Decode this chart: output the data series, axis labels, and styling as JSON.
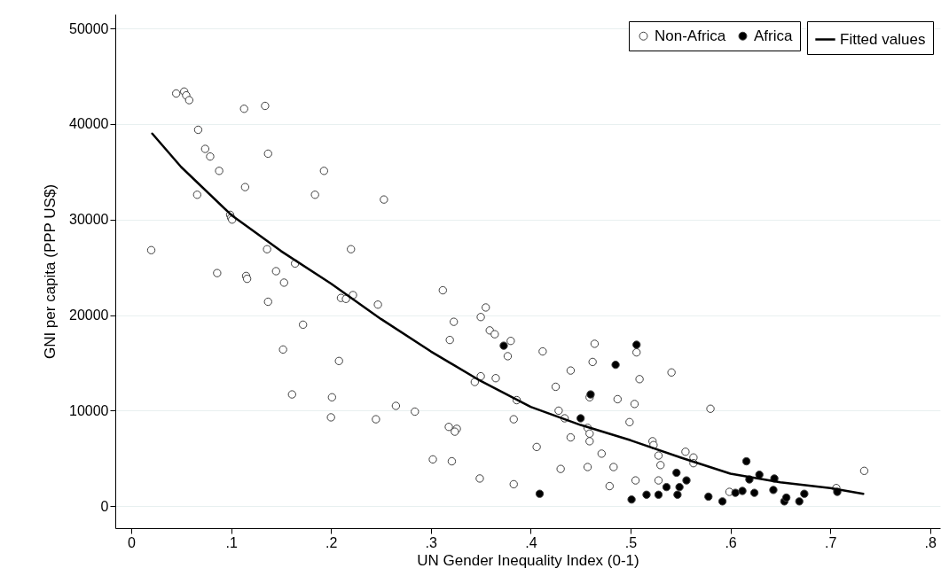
{
  "chart_data": {
    "type": "scatter",
    "xlabel": "UN Gender Inequality Index (0-1)",
    "ylabel": "GNI per capita (PPP US$)",
    "xlim": [
      -0.016,
      0.81
    ],
    "ylim": [
      -2300,
      51500
    ],
    "xticks": [
      {
        "value": 0,
        "label": "0"
      },
      {
        "value": 0.1,
        "label": ".1"
      },
      {
        "value": 0.2,
        "label": ".2"
      },
      {
        "value": 0.3,
        "label": ".3"
      },
      {
        "value": 0.4,
        "label": ".4"
      },
      {
        "value": 0.5,
        "label": ".5"
      },
      {
        "value": 0.6,
        "label": ".6"
      },
      {
        "value": 0.7,
        "label": ".7"
      },
      {
        "value": 0.8,
        "label": ".8"
      }
    ],
    "yticks": [
      0,
      10000,
      20000,
      30000,
      40000,
      50000
    ],
    "grid": "y",
    "legend": "top right",
    "marker": "circle",
    "series": [
      {
        "name": "Non-Africa",
        "color": "#ffffff",
        "x": [
          0.045,
          0.053,
          0.055,
          0.058,
          0.113,
          0.134,
          0.067,
          0.074,
          0.079,
          0.137,
          0.088,
          0.193,
          0.066,
          0.114,
          0.184,
          0.253,
          0.099,
          0.1,
          0.101,
          0.02,
          0.136,
          0.22,
          0.086,
          0.115,
          0.116,
          0.145,
          0.153,
          0.164,
          0.137,
          0.21,
          0.215,
          0.222,
          0.247,
          0.172,
          0.152,
          0.208,
          0.161,
          0.201,
          0.2,
          0.245,
          0.265,
          0.284,
          0.312,
          0.355,
          0.35,
          0.323,
          0.359,
          0.364,
          0.38,
          0.319,
          0.377,
          0.412,
          0.464,
          0.462,
          0.506,
          0.44,
          0.509,
          0.425,
          0.344,
          0.35,
          0.365,
          0.386,
          0.459,
          0.487,
          0.504,
          0.499,
          0.383,
          0.428,
          0.434,
          0.318,
          0.326,
          0.324,
          0.457,
          0.459,
          0.459,
          0.44,
          0.406,
          0.471,
          0.522,
          0.523,
          0.528,
          0.53,
          0.302,
          0.321,
          0.43,
          0.457,
          0.483,
          0.349,
          0.383,
          0.479,
          0.505,
          0.528,
          0.541,
          0.58,
          0.555,
          0.563,
          0.563,
          0.599,
          0.706,
          0.734
        ],
        "values": [
          43200,
          43400,
          43000,
          42500,
          41600,
          41900,
          39400,
          37400,
          36600,
          36900,
          35100,
          35100,
          32600,
          33400,
          32600,
          32100,
          30500,
          30200,
          30000,
          26800,
          26900,
          26900,
          24400,
          24100,
          23800,
          24600,
          23400,
          25400,
          21400,
          21800,
          21700,
          22100,
          21100,
          19000,
          16400,
          15200,
          11700,
          11400,
          9300,
          9100,
          10500,
          9900,
          22600,
          20800,
          19800,
          19300,
          18400,
          18000,
          17300,
          17400,
          15700,
          16200,
          17000,
          15100,
          16100,
          14200,
          13300,
          12500,
          13000,
          13600,
          13400,
          11100,
          11400,
          11200,
          10700,
          8800,
          9100,
          10000,
          9200,
          8300,
          8100,
          7800,
          8200,
          7600,
          6800,
          7200,
          6200,
          5500,
          6800,
          6400,
          5300,
          4300,
          4900,
          4700,
          3900,
          4100,
          4100,
          2900,
          2300,
          2100,
          2700,
          2700,
          14000,
          10200,
          5700,
          5100,
          4500,
          1500,
          1900,
          3700
        ]
      },
      {
        "name": "Africa",
        "color": "#000000",
        "x": [
          0.373,
          0.506,
          0.485,
          0.46,
          0.45,
          0.409,
          0.501,
          0.516,
          0.528,
          0.536,
          0.546,
          0.556,
          0.549,
          0.547,
          0.578,
          0.592,
          0.616,
          0.605,
          0.612,
          0.619,
          0.629,
          0.624,
          0.644,
          0.643,
          0.654,
          0.656,
          0.669,
          0.674,
          0.707
        ],
        "values": [
          16800,
          16900,
          14800,
          11700,
          9200,
          1300,
          700,
          1200,
          1200,
          2000,
          3500,
          2700,
          2000,
          1200,
          1000,
          500,
          4700,
          1400,
          1600,
          2800,
          3300,
          1400,
          2900,
          1700,
          500,
          900,
          500,
          1300,
          1500
        ]
      },
      {
        "name": "Fitted values",
        "type": "line",
        "color": "#000000",
        "marker": "none",
        "line_style": "solid",
        "x": [
          0.021,
          0.05,
          0.1,
          0.15,
          0.2,
          0.25,
          0.3,
          0.35,
          0.4,
          0.45,
          0.5,
          0.55,
          0.6,
          0.65,
          0.7,
          0.733
        ],
        "values": [
          39000,
          35500,
          30500,
          26700,
          23300,
          19600,
          16200,
          13100,
          10400,
          8500,
          6900,
          5100,
          3400,
          2500,
          1900,
          1300
        ]
      }
    ]
  }
}
